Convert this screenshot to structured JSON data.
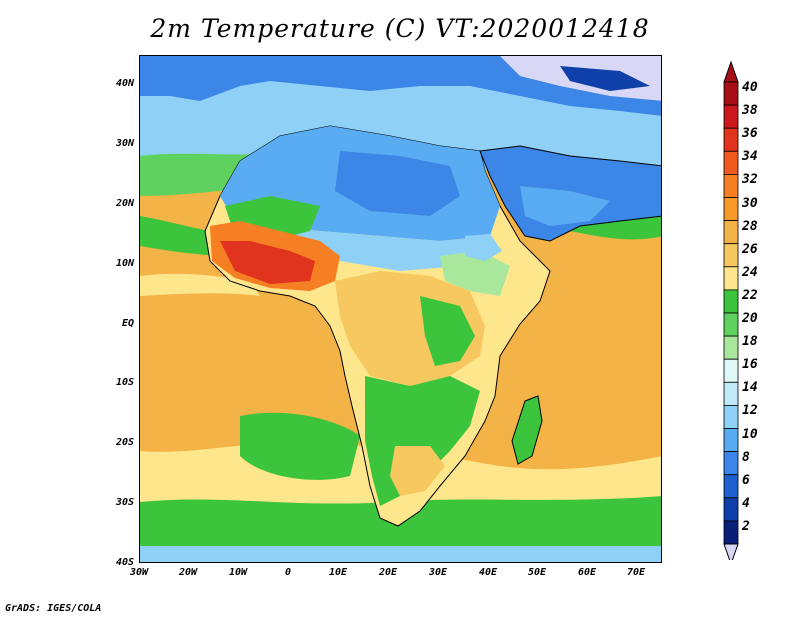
{
  "title": "2m Temperature (C) VT:2020012418",
  "credit": "GrADS: IGES/COLA",
  "map": {
    "region": "Africa",
    "lon_range": [
      -30,
      75
    ],
    "lat_range": [
      -40,
      45
    ],
    "lat_ticks": [
      "40N",
      "30N",
      "20N",
      "10N",
      "EQ",
      "10S",
      "20S",
      "30S",
      "40S"
    ],
    "lon_ticks": [
      "30W",
      "20W",
      "10W",
      "0",
      "10E",
      "20E",
      "30E",
      "40E",
      "50E",
      "60E",
      "70E"
    ]
  },
  "colorbar": {
    "labels": [
      "40",
      "38",
      "36",
      "34",
      "32",
      "30",
      "28",
      "26",
      "24",
      "22",
      "20",
      "18",
      "16",
      "14",
      "12",
      "10",
      "8",
      "6",
      "4",
      "2"
    ],
    "colors": [
      "#a50f15",
      "#cb181d",
      "#e0341f",
      "#ef5a21",
      "#f57f22",
      "#f69a2a",
      "#f3b347",
      "#f6c85f",
      "#fde68c",
      "#3cc43c",
      "#5fd15f",
      "#a9e89c",
      "#e0f8f8",
      "#bfe8f8",
      "#8fd0f6",
      "#5aacf2",
      "#3b86e6",
      "#1f60d0",
      "#0f3fa8",
      "#0a1f78"
    ],
    "top_triangle_color": "#a50f15",
    "bottom_triangle_color": "#d8d8f6"
  }
}
